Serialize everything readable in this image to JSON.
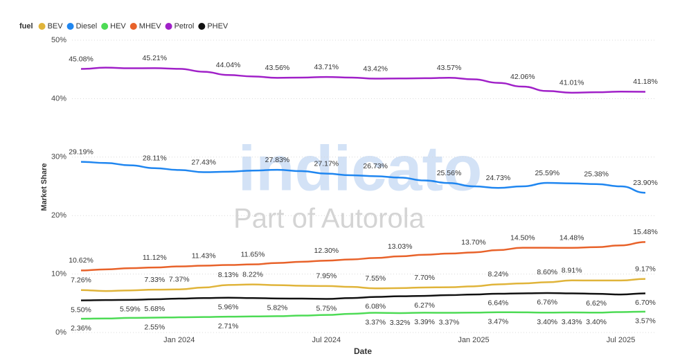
{
  "chart_data": {
    "type": "line",
    "legend_title": "fuel",
    "y_label": "Market Share",
    "x_label": "Date",
    "watermark": [
      "indicato",
      "Part of Autorola"
    ],
    "x": [
      "2023-09",
      "2023-10",
      "2023-11",
      "2023-12",
      "2024-01",
      "2024-02",
      "2024-03",
      "2024-04",
      "2024-05",
      "2024-06",
      "2024-07",
      "2024-08",
      "2024-09",
      "2024-10",
      "2024-11",
      "2024-12",
      "2025-01",
      "2025-02",
      "2025-03",
      "2025-04",
      "2025-05",
      "2025-06",
      "2025-07",
      "2025-08"
    ],
    "xlim": [
      "2023-09",
      "2025-08"
    ],
    "xticks": [
      {
        "value": "2024-01",
        "label": "Jan 2024"
      },
      {
        "value": "2024-07",
        "label": "Jul 2024"
      },
      {
        "value": "2025-01",
        "label": "Jan 2025"
      },
      {
        "value": "2025-07",
        "label": "Jul 2025"
      }
    ],
    "ylim": [
      0,
      50
    ],
    "yticks": [
      {
        "value": 0,
        "label": "0%"
      },
      {
        "value": 10,
        "label": "10%"
      },
      {
        "value": 20,
        "label": "20%"
      },
      {
        "value": 30,
        "label": "30%"
      },
      {
        "value": 40,
        "label": "40%"
      },
      {
        "value": 50,
        "label": "50%"
      }
    ],
    "grid": true,
    "legend": "top-left",
    "series": [
      {
        "name": "BEV",
        "color": "#e0b43a",
        "values": [
          7.26,
          7.1,
          7.2,
          7.33,
          7.37,
          7.7,
          8.13,
          8.22,
          8.1,
          8.0,
          7.95,
          7.8,
          7.55,
          7.6,
          7.7,
          7.75,
          7.9,
          8.24,
          8.4,
          8.6,
          8.91,
          8.9,
          8.9,
          9.17
        ],
        "value_labels": [
          "7.26%",
          null,
          null,
          "7.33%",
          "7.37%",
          null,
          "8.13%",
          "8.22%",
          null,
          null,
          "7.95%",
          null,
          "7.55%",
          null,
          "7.70%",
          null,
          null,
          "8.24%",
          null,
          "8.60%",
          "8.91%",
          null,
          null,
          "9.17%"
        ]
      },
      {
        "name": "Diesel",
        "color": "#1f86f0",
        "values": [
          29.19,
          29.0,
          28.6,
          28.11,
          27.8,
          27.43,
          27.5,
          27.7,
          27.83,
          27.6,
          27.17,
          26.9,
          26.73,
          26.5,
          26.0,
          25.56,
          25.0,
          24.73,
          25.0,
          25.59,
          25.5,
          25.38,
          25.0,
          23.9
        ],
        "value_labels": [
          "29.19%",
          null,
          null,
          "28.11%",
          null,
          "27.43%",
          null,
          null,
          "27.83%",
          null,
          "27.17%",
          null,
          "26.73%",
          null,
          null,
          "25.56%",
          null,
          "24.73%",
          null,
          "25.59%",
          null,
          "25.38%",
          null,
          "23.90%"
        ]
      },
      {
        "name": "HEV",
        "color": "#4ddb55",
        "values": [
          2.36,
          2.4,
          2.5,
          2.55,
          2.6,
          2.65,
          2.71,
          2.75,
          2.8,
          2.9,
          3.0,
          3.2,
          3.37,
          3.32,
          3.39,
          3.37,
          3.4,
          3.47,
          3.45,
          3.4,
          3.43,
          3.4,
          3.5,
          3.57
        ],
        "value_labels": [
          "2.36%",
          null,
          null,
          "2.55%",
          null,
          null,
          "2.71%",
          null,
          null,
          null,
          null,
          null,
          "3.37%",
          "3.32%",
          "3.39%",
          "3.37%",
          null,
          "3.47%",
          null,
          "3.40%",
          "3.43%",
          "3.40%",
          null,
          "3.57%"
        ]
      },
      {
        "name": "MHEV",
        "color": "#e8622a",
        "values": [
          10.62,
          10.8,
          11.0,
          11.12,
          11.3,
          11.43,
          11.55,
          11.65,
          11.9,
          12.1,
          12.3,
          12.5,
          12.75,
          13.03,
          13.3,
          13.5,
          13.7,
          14.1,
          14.5,
          14.5,
          14.48,
          14.6,
          14.9,
          15.48
        ],
        "value_labels": [
          "10.62%",
          null,
          null,
          "11.12%",
          null,
          "11.43%",
          null,
          "11.65%",
          null,
          null,
          "12.30%",
          null,
          null,
          "13.03%",
          null,
          null,
          "13.70%",
          null,
          "14.50%",
          null,
          "14.48%",
          null,
          null,
          "15.48%"
        ]
      },
      {
        "name": "Petrol",
        "color": "#a020c8",
        "values": [
          45.08,
          45.3,
          45.2,
          45.21,
          45.1,
          44.6,
          44.04,
          43.8,
          43.56,
          43.6,
          43.71,
          43.6,
          43.42,
          43.45,
          43.5,
          43.57,
          43.3,
          42.7,
          42.06,
          41.3,
          41.01,
          41.1,
          41.2,
          41.18
        ],
        "value_labels": [
          "45.08%",
          null,
          null,
          "45.21%",
          null,
          null,
          "44.04%",
          null,
          "43.56%",
          null,
          "43.71%",
          null,
          "43.42%",
          null,
          null,
          "43.57%",
          null,
          null,
          "42.06%",
          null,
          "41.01%",
          null,
          null,
          "41.18%"
        ]
      },
      {
        "name": "PHEV",
        "color": "#111111",
        "values": [
          5.5,
          5.55,
          5.59,
          5.68,
          5.8,
          5.9,
          5.96,
          5.9,
          5.82,
          5.8,
          5.75,
          5.9,
          6.08,
          6.2,
          6.27,
          6.4,
          6.5,
          6.64,
          6.7,
          6.76,
          6.7,
          6.62,
          6.5,
          6.7
        ],
        "value_labels": [
          "5.50%",
          null,
          "5.59%",
          "5.68%",
          null,
          null,
          "5.96%",
          null,
          "5.82%",
          null,
          "5.75%",
          null,
          "6.08%",
          null,
          "6.27%",
          null,
          null,
          "6.64%",
          null,
          "6.76%",
          null,
          "6.62%",
          null,
          "6.70%"
        ]
      }
    ]
  }
}
